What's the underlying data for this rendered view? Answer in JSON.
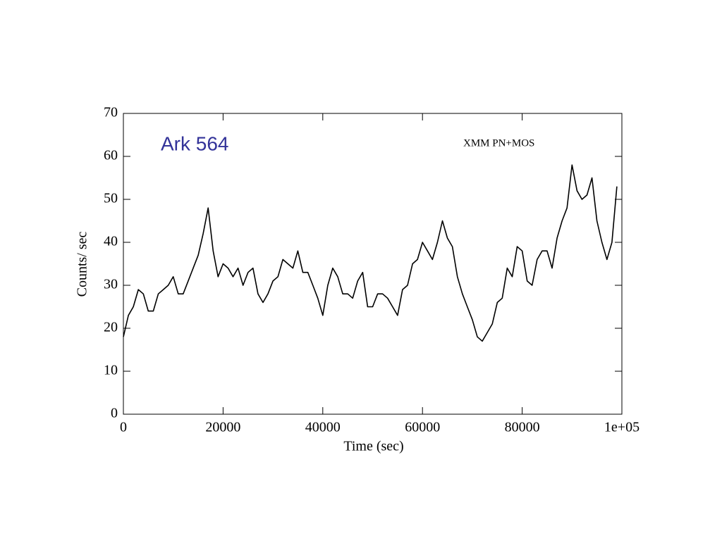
{
  "chart_data": {
    "type": "line",
    "annotations": [
      "Ark 564",
      "XMM PN+MOS"
    ],
    "xlabel": "Time (sec)",
    "ylabel": "Counts/ sec",
    "x": [
      0,
      1000,
      2000,
      3000,
      4000,
      5000,
      6000,
      7000,
      8000,
      9000,
      10000,
      11000,
      12000,
      13000,
      14000,
      15000,
      16000,
      17000,
      18000,
      19000,
      20000,
      21000,
      22000,
      23000,
      24000,
      25000,
      26000,
      27000,
      28000,
      29000,
      30000,
      31000,
      32000,
      33000,
      34000,
      35000,
      36000,
      37000,
      38000,
      39000,
      40000,
      41000,
      42000,
      43000,
      44000,
      45000,
      46000,
      47000,
      48000,
      49000,
      50000,
      51000,
      52000,
      53000,
      54000,
      55000,
      56000,
      57000,
      58000,
      59000,
      60000,
      61000,
      62000,
      63000,
      64000,
      65000,
      66000,
      67000,
      68000,
      69000,
      70000,
      71000,
      72000,
      73000,
      74000,
      75000,
      76000,
      77000,
      78000,
      79000,
      80000,
      81000,
      82000,
      83000,
      84000,
      85000,
      86000,
      87000,
      88000,
      89000,
      90000,
      91000,
      92000,
      93000,
      94000,
      95000,
      96000,
      97000,
      98000,
      99000
    ],
    "series": [
      {
        "name": "Ark 564",
        "color": "#000000",
        "values": [
          18,
          23,
          25,
          29,
          28,
          24,
          24,
          28,
          29,
          30,
          32,
          28,
          28,
          31,
          34,
          37,
          42,
          48,
          38,
          32,
          35,
          34,
          32,
          34,
          30,
          33,
          34,
          28,
          26,
          28,
          31,
          32,
          36,
          35,
          34,
          38,
          33,
          33,
          30,
          27,
          23,
          30,
          34,
          32,
          28,
          28,
          27,
          31,
          33,
          25,
          25,
          28,
          28,
          27,
          25,
          23,
          29,
          30,
          35,
          36,
          40,
          38,
          36,
          40,
          45,
          41,
          39,
          32,
          28,
          25,
          22,
          18,
          17,
          19,
          21,
          26,
          27,
          34,
          32,
          39,
          38,
          31,
          30,
          36,
          38,
          38,
          34,
          41,
          45,
          48,
          58,
          52,
          50,
          51,
          55,
          45,
          40,
          36,
          40,
          53
        ]
      }
    ],
    "xlim": [
      0,
      100000
    ],
    "xticks": [
      0,
      20000,
      40000,
      60000,
      80000,
      {
        "value": 100000,
        "label": "1e+05"
      }
    ],
    "ylim": [
      0,
      70
    ],
    "yticks": [
      0,
      10,
      20,
      30,
      40,
      50,
      60,
      70
    ],
    "grid": false
  }
}
